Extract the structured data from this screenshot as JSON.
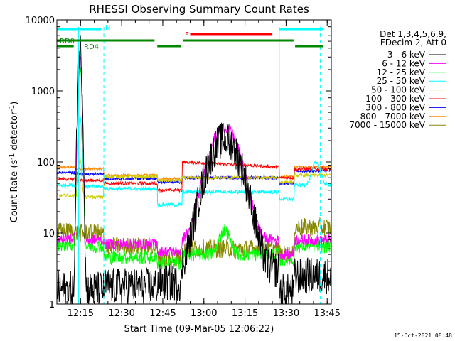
{
  "chart_data": {
    "type": "line",
    "title": "RHESSI Observing Summary Count Rates",
    "xlabel": "Start Time (09-Mar-05 12:06:22)",
    "ylabel": "Count Rate (s",
    "ylabel_sup": "-1",
    "ylabel_rest": " detector",
    "ylabel_sup2": "-1",
    "ylabel_end": ")",
    "yscale": "log",
    "ylim": [
      1,
      10000
    ],
    "xlim": [
      12.106,
      13.775
    ],
    "x_ticks": [
      "12:15",
      "12:30",
      "12:45",
      "13:00",
      "13:15",
      "13:30",
      "13:45"
    ],
    "y_ticks": [
      "1",
      "10",
      "100",
      "1000",
      "10000"
    ],
    "legend": {
      "position": "right",
      "header": [
        "Det 1,3,4,5,6,9,",
        "FDecim 2, Att 0"
      ]
    },
    "series": [
      {
        "name": "3 - 6 keV",
        "color": "#000000"
      },
      {
        "name": "6 - 12 keV",
        "color": "#ff00ff"
      },
      {
        "name": "12 - 25 keV",
        "color": "#00ff00"
      },
      {
        "name": "25 - 50 keV",
        "color": "#00ffff"
      },
      {
        "name": "50 - 100 keV",
        "color": "#cccc00"
      },
      {
        "name": "100 - 300 keV",
        "color": "#ff0000"
      },
      {
        "name": "300 - 800 keV",
        "color": "#0000ff"
      },
      {
        "name": "800 - 7000 keV",
        "color": "#ff8800"
      },
      {
        "name": "7000 - 15000 keV",
        "color": "#888800"
      }
    ],
    "flags": [
      {
        "label": "N",
        "color": "#00ffff"
      },
      {
        "label": "RD0",
        "color": "#008800"
      },
      {
        "label": "RD4",
        "color": "#008800"
      },
      {
        "label": "F",
        "color": "#ff0000"
      }
    ],
    "timestamp": "15-Oct-2021 08:48"
  }
}
